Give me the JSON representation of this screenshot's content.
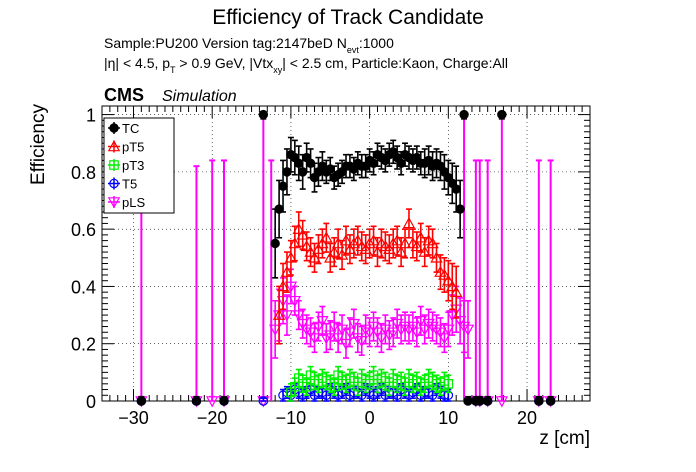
{
  "title": "Efficiency of Track Candidate",
  "info": {
    "line1_prefix": "Sample:PU200   Version tag:2147beD  N",
    "line1_sub": "evt",
    "line1_suffix": ":1000",
    "line2_a": "|η| < 4.5, p",
    "line2_sub1": "T",
    "line2_b": " > 0.9 GeV, |Vtx",
    "line2_sub2": "xy",
    "line2_c": "| < 2.5 cm, Particle:Kaon, Charge:All"
  },
  "cms_label": "CMS",
  "cms_sublabel": "Simulation",
  "chart_data": {
    "type": "scatter",
    "title": "Efficiency of Track Candidate",
    "xlabel": "z [cm]",
    "ylabel": "Efficiency",
    "xlim": [
      -34,
      28
    ],
    "ylim": [
      0,
      1.03
    ],
    "xticks": [
      -30,
      -20,
      -10,
      0,
      10,
      20
    ],
    "yticks": [
      0,
      0.2,
      0.4,
      0.6,
      0.8,
      1
    ],
    "grid": true,
    "legend_position": "top-left",
    "series": [
      {
        "name": "TC",
        "color": "#000000",
        "marker": "filled-circle",
        "x": [
          -29,
          -22,
          -18.5,
          -13.5,
          -12,
          -11.5,
          -11,
          -10.5,
          -10,
          -9.5,
          -9,
          -8.5,
          -8,
          -7.5,
          -7,
          -6.5,
          -6,
          -5.5,
          -5,
          -4.5,
          -4,
          -3.5,
          -3,
          -2.5,
          -2,
          -1.5,
          -1,
          -0.5,
          0,
          0.5,
          1,
          1.5,
          2,
          2.5,
          3,
          3.5,
          4,
          4.5,
          5,
          5.5,
          6,
          6.5,
          7,
          7.5,
          8,
          8.5,
          9,
          9.5,
          10,
          10.5,
          11,
          11.5,
          12,
          12.5,
          13.5,
          14,
          15,
          16.8,
          21.5,
          23
        ],
        "y": [
          0,
          0,
          0,
          1,
          0.55,
          0.67,
          0.75,
          0.8,
          0.86,
          0.85,
          0.83,
          0.8,
          0.85,
          0.83,
          0.78,
          0.8,
          0.82,
          0.8,
          0.81,
          0.78,
          0.79,
          0.8,
          0.82,
          0.82,
          0.81,
          0.83,
          0.82,
          0.82,
          0.84,
          0.83,
          0.86,
          0.85,
          0.84,
          0.86,
          0.87,
          0.85,
          0.83,
          0.86,
          0.85,
          0.84,
          0.85,
          0.83,
          0.83,
          0.84,
          0.82,
          0.83,
          0.82,
          0.8,
          0.78,
          0.76,
          0.74,
          0.67,
          1,
          0,
          0,
          0,
          0,
          1,
          0,
          0
        ],
        "err": [
          0.015,
          0.015,
          0.015,
          0.015,
          0.12,
          0.1,
          0.09,
          0.08,
          0.06,
          0.06,
          0.06,
          0.06,
          0.05,
          0.05,
          0.05,
          0.05,
          0.05,
          0.04,
          0.04,
          0.04,
          0.04,
          0.04,
          0.04,
          0.04,
          0.04,
          0.04,
          0.04,
          0.04,
          0.04,
          0.04,
          0.04,
          0.04,
          0.04,
          0.04,
          0.04,
          0.04,
          0.04,
          0.04,
          0.04,
          0.04,
          0.04,
          0.04,
          0.05,
          0.05,
          0.05,
          0.05,
          0.05,
          0.06,
          0.06,
          0.07,
          0.08,
          0.1,
          0.015,
          0.015,
          0.015,
          0.015,
          0.015,
          0.015,
          0.015,
          0.015
        ]
      },
      {
        "name": "pT5",
        "color": "#ff0000",
        "marker": "open-triangle",
        "x": [
          -11.5,
          -11,
          -10.5,
          -10,
          -9.5,
          -9,
          -8.5,
          -8,
          -7.5,
          -7,
          -6.5,
          -6,
          -5.5,
          -5,
          -4.5,
          -4,
          -3.5,
          -3,
          -2.5,
          -2,
          -1.5,
          -1,
          -0.5,
          0,
          0.5,
          1,
          1.5,
          2,
          2.5,
          3,
          3.5,
          4,
          4.5,
          5,
          5.5,
          6,
          6.5,
          7,
          7.5,
          8,
          8.5,
          9,
          9.5,
          10,
          10.5,
          11
        ],
        "y": [
          0.3,
          0.4,
          0.45,
          0.5,
          0.55,
          0.6,
          0.58,
          0.54,
          0.52,
          0.5,
          0.53,
          0.55,
          0.57,
          0.5,
          0.52,
          0.55,
          0.51,
          0.56,
          0.53,
          0.55,
          0.56,
          0.54,
          0.53,
          0.55,
          0.56,
          0.52,
          0.55,
          0.54,
          0.53,
          0.55,
          0.56,
          0.52,
          0.55,
          0.62,
          0.55,
          0.54,
          0.57,
          0.52,
          0.56,
          0.55,
          0.5,
          0.45,
          0.44,
          0.42,
          0.4,
          0.38
        ],
        "err": [
          0.1,
          0.08,
          0.07,
          0.06,
          0.06,
          0.06,
          0.05,
          0.05,
          0.05,
          0.05,
          0.05,
          0.05,
          0.05,
          0.05,
          0.05,
          0.05,
          0.05,
          0.05,
          0.05,
          0.05,
          0.05,
          0.05,
          0.05,
          0.05,
          0.05,
          0.05,
          0.05,
          0.05,
          0.05,
          0.05,
          0.05,
          0.05,
          0.05,
          0.05,
          0.05,
          0.05,
          0.05,
          0.05,
          0.05,
          0.05,
          0.05,
          0.06,
          0.06,
          0.07,
          0.08,
          0.09
        ]
      },
      {
        "name": "pT3",
        "color": "#00ee00",
        "marker": "open-square",
        "x": [
          -10,
          -9.5,
          -9,
          -8.5,
          -8,
          -7.5,
          -7,
          -6.5,
          -6,
          -5.5,
          -5,
          -4.5,
          -4,
          -3.5,
          -3,
          -2.5,
          -2,
          -1.5,
          -1,
          -0.5,
          0,
          0.5,
          1,
          1.5,
          2,
          2.5,
          3,
          3.5,
          4,
          4.5,
          5,
          5.5,
          6,
          6.5,
          7,
          7.5,
          8,
          8.5,
          9,
          9.5,
          10
        ],
        "y": [
          0.03,
          0.05,
          0.08,
          0.06,
          0.05,
          0.09,
          0.07,
          0.06,
          0.08,
          0.07,
          0.06,
          0.05,
          0.09,
          0.07,
          0.06,
          0.08,
          0.07,
          0.05,
          0.08,
          0.06,
          0.07,
          0.09,
          0.06,
          0.08,
          0.07,
          0.05,
          0.08,
          0.06,
          0.07,
          0.05,
          0.08,
          0.06,
          0.07,
          0.05,
          0.06,
          0.08,
          0.07,
          0.06,
          0.05,
          0.07,
          0.06
        ],
        "err": [
          0.03,
          0.03,
          0.03,
          0.03,
          0.03,
          0.03,
          0.03,
          0.03,
          0.03,
          0.03,
          0.03,
          0.03,
          0.03,
          0.03,
          0.03,
          0.03,
          0.03,
          0.03,
          0.03,
          0.03,
          0.03,
          0.03,
          0.03,
          0.03,
          0.03,
          0.03,
          0.03,
          0.03,
          0.03,
          0.03,
          0.03,
          0.03,
          0.03,
          0.03,
          0.03,
          0.03,
          0.03,
          0.03,
          0.03,
          0.03,
          0.03
        ]
      },
      {
        "name": "T5",
        "color": "#0000ff",
        "marker": "open-circle",
        "x": [
          -29,
          -22,
          -18.5,
          -13.5,
          -11,
          -10.5,
          -10,
          -9.5,
          -9,
          -8.5,
          -8,
          -7.5,
          -7,
          -6.5,
          -6,
          -5.5,
          -5,
          -4.5,
          -4,
          -3.5,
          -3,
          -2.5,
          -2,
          -1.5,
          -1,
          -0.5,
          0,
          0.5,
          1,
          1.5,
          2,
          2.5,
          3,
          3.5,
          4,
          4.5,
          5,
          5.5,
          6,
          6.5,
          7,
          7.5,
          8,
          8.5,
          9,
          9.5,
          10,
          13.5,
          14,
          15,
          21.5,
          23
        ],
        "y": [
          0,
          0,
          0,
          0,
          0.02,
          0.03,
          0.02,
          0.04,
          0.03,
          0.02,
          0.03,
          0.04,
          0.02,
          0.03,
          0.03,
          0.02,
          0.04,
          0.03,
          0.02,
          0.03,
          0.04,
          0.02,
          0.03,
          0.03,
          0.02,
          0.04,
          0.03,
          0.02,
          0.03,
          0.04,
          0.02,
          0.03,
          0.03,
          0.02,
          0.04,
          0.03,
          0.02,
          0.03,
          0.04,
          0.02,
          0.03,
          0.03,
          0.02,
          0.04,
          0.03,
          0.02,
          0.02,
          0,
          0,
          0,
          0,
          0
        ],
        "err": [
          0.01,
          0.01,
          0.01,
          0.01,
          0.02,
          0.02,
          0.02,
          0.02,
          0.02,
          0.02,
          0.02,
          0.02,
          0.02,
          0.02,
          0.02,
          0.02,
          0.02,
          0.02,
          0.02,
          0.02,
          0.02,
          0.02,
          0.02,
          0.02,
          0.02,
          0.02,
          0.02,
          0.02,
          0.02,
          0.02,
          0.02,
          0.02,
          0.02,
          0.02,
          0.02,
          0.02,
          0.02,
          0.02,
          0.02,
          0.02,
          0.02,
          0.02,
          0.02,
          0.02,
          0.02,
          0.02,
          0.02,
          0.01,
          0.01,
          0.01,
          0.01,
          0.01
        ]
      },
      {
        "name": "pLS",
        "color": "#ff00ff",
        "marker": "open-triangle-down",
        "x": [
          -29,
          -22,
          -20,
          -18.5,
          -13.5,
          -12,
          -11.5,
          -11,
          -10.5,
          -10,
          -9.5,
          -9,
          -8.5,
          -8,
          -7.5,
          -7,
          -6.5,
          -6,
          -5.5,
          -5,
          -4.5,
          -4,
          -3.5,
          -3,
          -2.5,
          -2,
          -1.5,
          -1,
          -0.5,
          0,
          0.5,
          1,
          1.5,
          2,
          2.5,
          3,
          3.5,
          4,
          4.5,
          5,
          5.5,
          6,
          6.5,
          7,
          7.5,
          8,
          8.5,
          9,
          9.5,
          10,
          10.5,
          11,
          11.5,
          12,
          12.5,
          13.5,
          14,
          15,
          16.8,
          21.5,
          23
        ],
        "y": [
          0,
          0,
          0,
          0,
          0,
          0.25,
          0.3,
          0.35,
          0.3,
          0.4,
          0.35,
          0.3,
          0.27,
          0.25,
          0.24,
          0.22,
          0.26,
          0.28,
          0.22,
          0.23,
          0.26,
          0.22,
          0.25,
          0.2,
          0.24,
          0.27,
          0.22,
          0.21,
          0.25,
          0.24,
          0.26,
          0.24,
          0.22,
          0.25,
          0.23,
          0.24,
          0.27,
          0.25,
          0.26,
          0.25,
          0.26,
          0.24,
          0.28,
          0.25,
          0.27,
          0.26,
          0.25,
          0.24,
          0.22,
          0.25,
          0.3,
          0.32,
          0.28,
          0.26,
          0.25,
          0,
          0,
          0,
          0,
          0,
          0
        ],
        "err": [
          0.015,
          0.015,
          0.015,
          0.015,
          0.015,
          0.1,
          0.09,
          0.08,
          0.07,
          0.06,
          0.05,
          0.05,
          0.05,
          0.05,
          0.05,
          0.05,
          0.05,
          0.05,
          0.05,
          0.05,
          0.05,
          0.05,
          0.05,
          0.05,
          0.05,
          0.05,
          0.05,
          0.05,
          0.05,
          0.05,
          0.05,
          0.05,
          0.05,
          0.05,
          0.05,
          0.05,
          0.05,
          0.05,
          0.05,
          0.05,
          0.05,
          0.05,
          0.05,
          0.05,
          0.05,
          0.05,
          0.05,
          0.05,
          0.05,
          0.06,
          0.07,
          0.08,
          0.08,
          0.09,
          0.1,
          0.015,
          0.015,
          0.015,
          0.015,
          0.015,
          0.015
        ]
      }
    ],
    "spikes": [
      {
        "x": -29,
        "y": 0.85,
        "color": "#ff00ff"
      },
      {
        "x": -22,
        "y": 0.82,
        "color": "#ff00ff"
      },
      {
        "x": -20,
        "y": 0.84,
        "color": "#ff00ff"
      },
      {
        "x": -18.5,
        "y": 0.84,
        "color": "#ff00ff"
      },
      {
        "x": -13.5,
        "y": 1.0,
        "color": "#ff00ff"
      },
      {
        "x": -12.5,
        "y": 0.84,
        "color": "#ff00ff"
      },
      {
        "x": 12,
        "y": 1.0,
        "color": "#ff00ff"
      },
      {
        "x": 13.5,
        "y": 0.84,
        "color": "#ff00ff"
      },
      {
        "x": 14,
        "y": 0.84,
        "color": "#ff00ff"
      },
      {
        "x": 15,
        "y": 0.84,
        "color": "#ff00ff"
      },
      {
        "x": 16.8,
        "y": 1.0,
        "color": "#ff00ff"
      },
      {
        "x": 21.5,
        "y": 0.84,
        "color": "#ff00ff"
      },
      {
        "x": 23,
        "y": 0.84,
        "color": "#ff00ff"
      }
    ]
  }
}
